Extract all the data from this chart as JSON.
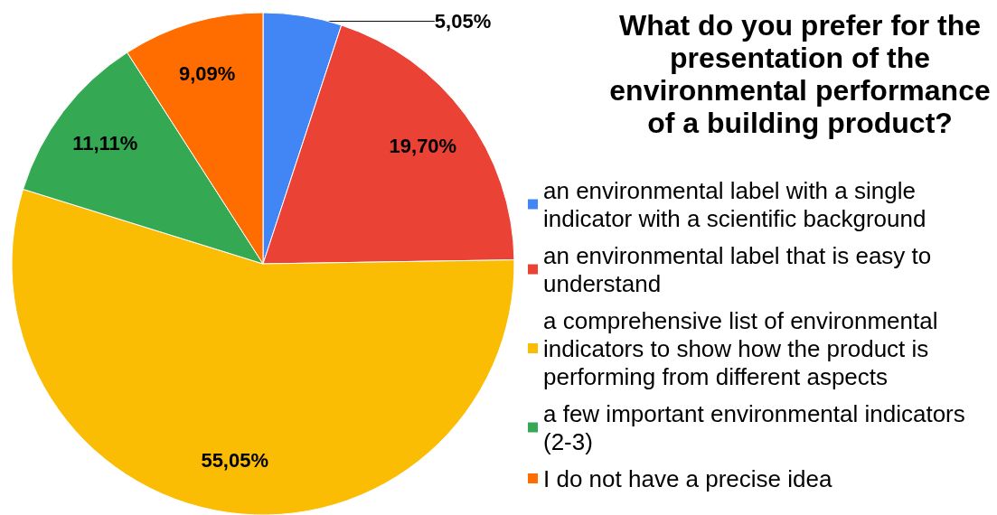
{
  "chart_data": {
    "type": "pie",
    "title": "What do you prefer for the presentation of the environmental performance of a building product?",
    "categories": [
      "an environmental label with a single indicator with a scientific background",
      "an environmental label that is easy to understand",
      "a comprehensive list of environmental indicators to show how the product is performing from different aspects",
      "a few important environmental indicators (2-3)",
      "I do not have a precise idea"
    ],
    "values": [
      5.05,
      19.7,
      55.05,
      11.11,
      9.09
    ],
    "colors": [
      "#4285f4",
      "#ea4335",
      "#fbbc04",
      "#34a853",
      "#ff6d01"
    ],
    "value_labels": [
      "5,05%",
      "19,70%",
      "55,05%",
      "11,11%",
      "9,09%"
    ],
    "legend": "right"
  }
}
